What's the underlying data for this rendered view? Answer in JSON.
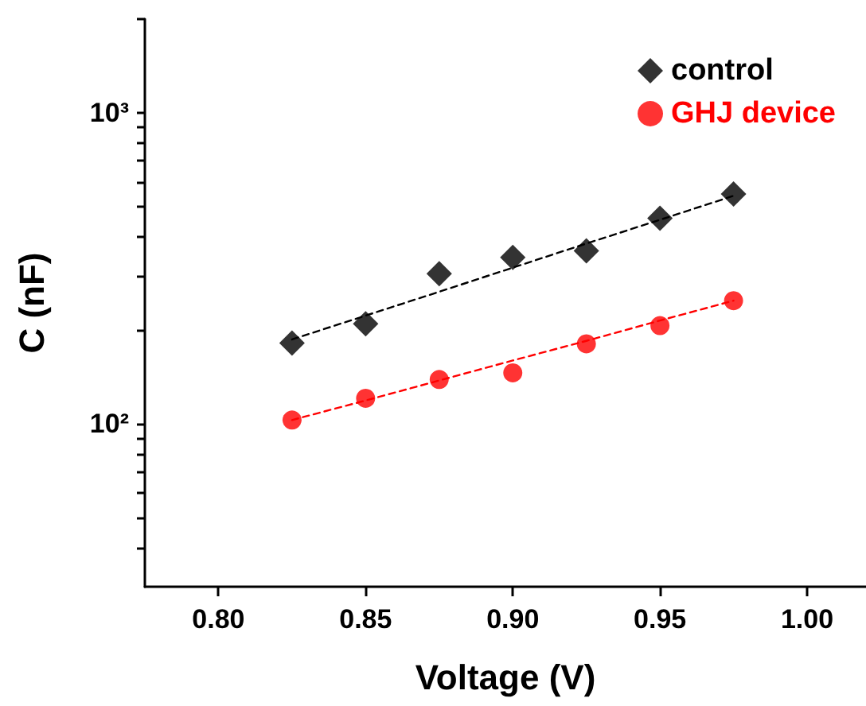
{
  "chart_data": {
    "type": "scatter",
    "xlabel": "Voltage (V)",
    "ylabel": "C (nF)",
    "log": "y",
    "legend": "top right",
    "grid": false,
    "xlim": [
      0.775,
      1.02
    ],
    "xticks": [
      {
        "value": 0.8,
        "label": "0.80"
      },
      {
        "value": 0.85,
        "label": "0.85"
      },
      {
        "value": 0.9,
        "label": "0.90"
      },
      {
        "value": 0.95,
        "label": "0.95"
      },
      {
        "value": 1.0,
        "label": "1.00"
      }
    ],
    "ylim": [
      30,
      2000
    ],
    "yticks": [
      {
        "value": 40,
        "label": null
      },
      {
        "value": 50,
        "label": null
      },
      {
        "value": 60,
        "label": null
      },
      {
        "value": 70,
        "label": null
      },
      {
        "value": 80,
        "label": null
      },
      {
        "value": 90,
        "label": null
      },
      {
        "value": 100,
        "label": "10²"
      },
      {
        "value": 200,
        "label": null
      },
      {
        "value": 300,
        "label": null
      },
      {
        "value": 400,
        "label": null
      },
      {
        "value": 500,
        "label": null
      },
      {
        "value": 600,
        "label": null
      },
      {
        "value": 700,
        "label": null
      },
      {
        "value": 800,
        "label": null
      },
      {
        "value": 900,
        "label": null
      },
      {
        "value": 1000,
        "label": "10³"
      },
      {
        "value": 2000,
        "label": null
      }
    ],
    "x": [
      0.825,
      0.85,
      0.875,
      0.9,
      0.925,
      0.95,
      0.975
    ],
    "series": [
      {
        "name": "control",
        "color": "#000000",
        "marker": "diamond",
        "values": [
          182,
          210,
          304,
          343,
          360,
          458,
          548
        ]
      },
      {
        "name": "GHJ device",
        "color": "#ff0000",
        "marker": "circle",
        "values": [
          103,
          121,
          139,
          146,
          181,
          207,
          249
        ]
      },
      {
        "type": "line",
        "color": "#000000",
        "marker": "none",
        "line_style": "dashed",
        "values": [
          187,
          223,
          266,
          318,
          380,
          453,
          541
        ]
      },
      {
        "type": "line",
        "color": "#ff0000",
        "marker": "none",
        "line_style": "dashed",
        "values": [
          103,
          119,
          138,
          160,
          185,
          215,
          249
        ]
      }
    ]
  }
}
